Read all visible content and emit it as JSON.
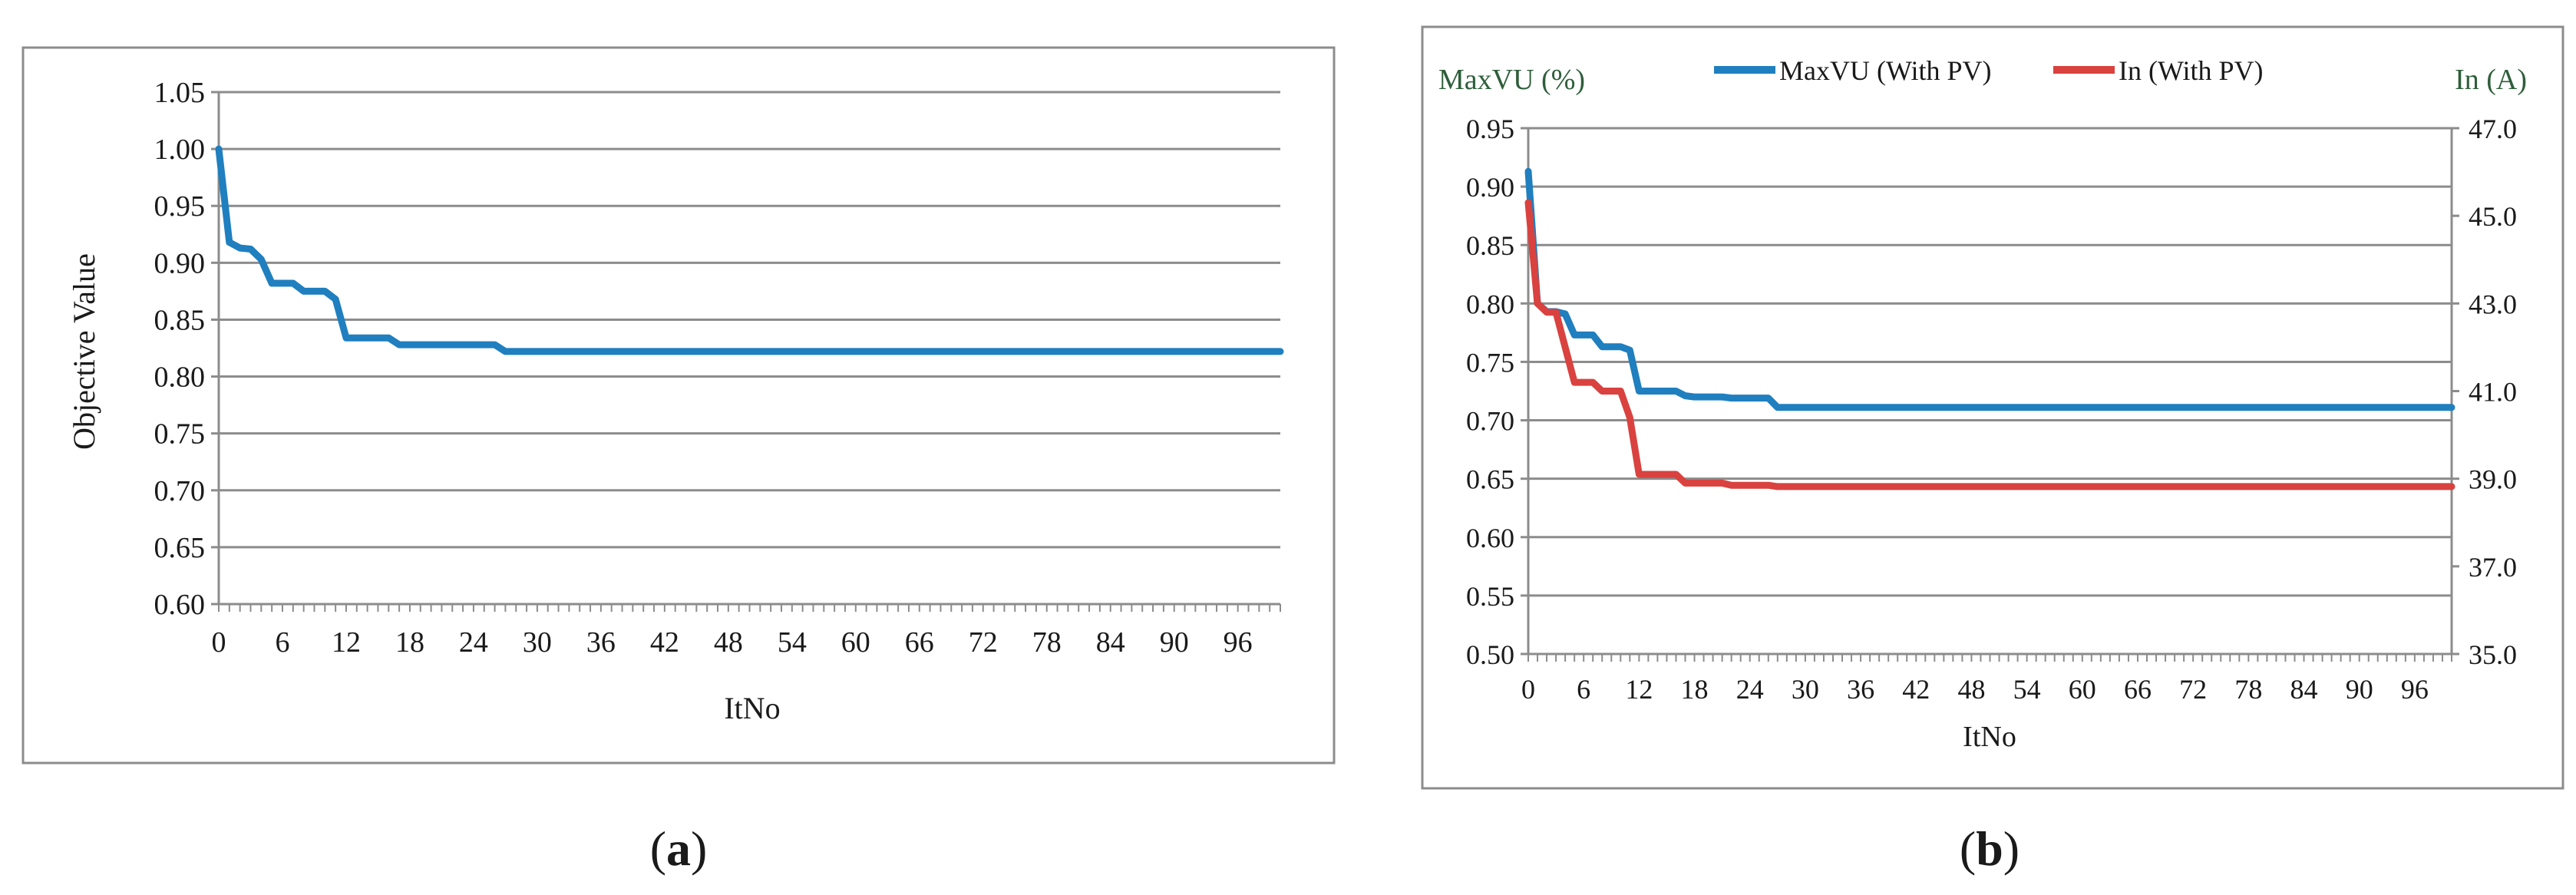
{
  "colors": {
    "blue": "#1F7FBF",
    "red": "#D9423F",
    "grid": "#8C8C8C",
    "axis_title_green": "#2E5E3A",
    "frame": "#8C8C8C",
    "text": "#1a1a1a"
  },
  "chart_data": [
    {
      "type": "line",
      "panel_label": "(a)",
      "panel_label_letter": "a",
      "xlabel": "ItNo",
      "ylabel": "Objective Value",
      "ylim": [
        0.6,
        1.05
      ],
      "yticks": [
        "0.60",
        "0.65",
        "0.70",
        "0.75",
        "0.80",
        "0.85",
        "0.90",
        "0.95",
        "1.00",
        "1.05"
      ],
      "xlim": [
        0,
        100
      ],
      "xticks": [
        "0",
        "6",
        "12",
        "18",
        "24",
        "30",
        "36",
        "42",
        "48",
        "54",
        "60",
        "66",
        "72",
        "78",
        "84",
        "90",
        "96"
      ],
      "grid": true,
      "series": [
        {
          "name": "Objective Value",
          "color": "#1F7FBF",
          "x": [
            0,
            1,
            2,
            3,
            4,
            5,
            6,
            7,
            8,
            9,
            10,
            11,
            12,
            13,
            14,
            15,
            16,
            17,
            18,
            19,
            20,
            21,
            22,
            23,
            24,
            25,
            26,
            27,
            28,
            100
          ],
          "values": [
            1.0,
            0.918,
            0.913,
            0.912,
            0.903,
            0.882,
            0.882,
            0.882,
            0.875,
            0.875,
            0.875,
            0.868,
            0.834,
            0.834,
            0.834,
            0.834,
            0.834,
            0.828,
            0.828,
            0.828,
            0.828,
            0.828,
            0.828,
            0.828,
            0.828,
            0.828,
            0.828,
            0.822,
            0.822,
            0.822
          ]
        }
      ]
    },
    {
      "type": "line",
      "panel_label": "(b)",
      "panel_label_letter": "b",
      "xlabel": "ItNo",
      "ylabel": "MaxVU (%)",
      "ylabel_right": "In (A)",
      "ylim": [
        0.5,
        0.95
      ],
      "yticks": [
        "0.50",
        "0.55",
        "0.60",
        "0.65",
        "0.70",
        "0.75",
        "0.80",
        "0.85",
        "0.90",
        "0.95"
      ],
      "ylim_right": [
        35.0,
        47.0
      ],
      "yticks_right": [
        "35.0",
        "37.0",
        "39.0",
        "41.0",
        "43.0",
        "45.0",
        "47.0"
      ],
      "xlim": [
        0,
        100
      ],
      "xticks": [
        "0",
        "6",
        "12",
        "18",
        "24",
        "30",
        "36",
        "42",
        "48",
        "54",
        "60",
        "66",
        "72",
        "78",
        "84",
        "90",
        "96"
      ],
      "grid": true,
      "legend_position": "top-center",
      "series": [
        {
          "name": "MaxVU (With PV)",
          "axis": "left",
          "color": "#1F7FBF",
          "x": [
            0,
            1,
            2,
            3,
            4,
            5,
            6,
            7,
            8,
            9,
            10,
            11,
            12,
            13,
            14,
            15,
            16,
            17,
            18,
            19,
            20,
            21,
            22,
            23,
            24,
            25,
            26,
            27,
            28,
            100
          ],
          "values": [
            0.913,
            0.8,
            0.793,
            0.793,
            0.791,
            0.773,
            0.773,
            0.773,
            0.763,
            0.763,
            0.763,
            0.76,
            0.725,
            0.725,
            0.725,
            0.725,
            0.725,
            0.721,
            0.72,
            0.72,
            0.72,
            0.72,
            0.719,
            0.719,
            0.719,
            0.719,
            0.719,
            0.711,
            0.711,
            0.711
          ]
        },
        {
          "name": "In (With PV)",
          "axis": "right",
          "color": "#D9423F",
          "x": [
            0,
            1,
            2,
            3,
            4,
            5,
            6,
            7,
            8,
            9,
            10,
            11,
            12,
            13,
            14,
            15,
            16,
            17,
            18,
            19,
            20,
            21,
            22,
            23,
            24,
            25,
            26,
            27,
            28,
            100
          ],
          "values": [
            45.3,
            43.0,
            42.8,
            42.8,
            42.0,
            41.2,
            41.2,
            41.2,
            41.0,
            41.0,
            41.0,
            40.4,
            39.1,
            39.1,
            39.1,
            39.1,
            39.1,
            38.9,
            38.9,
            38.9,
            38.9,
            38.9,
            38.85,
            38.85,
            38.85,
            38.85,
            38.85,
            38.82,
            38.82,
            38.82
          ]
        }
      ]
    }
  ]
}
